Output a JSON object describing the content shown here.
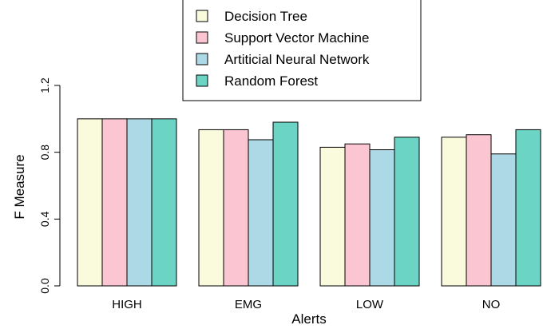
{
  "chart_data": {
    "type": "bar",
    "xlabel": "Alerts",
    "ylabel": "F Measure",
    "ylim": [
      0,
      1.2
    ],
    "yticks": [
      "0.0",
      "0.4",
      "0.8",
      "1.2"
    ],
    "categories": [
      "HIGH",
      "EMG",
      "LOW",
      "NO"
    ],
    "series": [
      {
        "name": "Decision Tree",
        "color": "#fafadc",
        "values": [
          1.0,
          0.935,
          0.83,
          0.89
        ]
      },
      {
        "name": "Support Vector Machine",
        "color": "#fbc6d1",
        "values": [
          1.0,
          0.935,
          0.85,
          0.905
        ]
      },
      {
        "name": "Artiticial Neural Network",
        "color": "#add8e5",
        "values": [
          1.0,
          0.875,
          0.815,
          0.79
        ]
      },
      {
        "name": "Random Forest",
        "color": "#6cd4c4",
        "values": [
          1.0,
          0.98,
          0.89,
          0.935
        ]
      }
    ],
    "legend_position": "top-center",
    "grid": false
  }
}
